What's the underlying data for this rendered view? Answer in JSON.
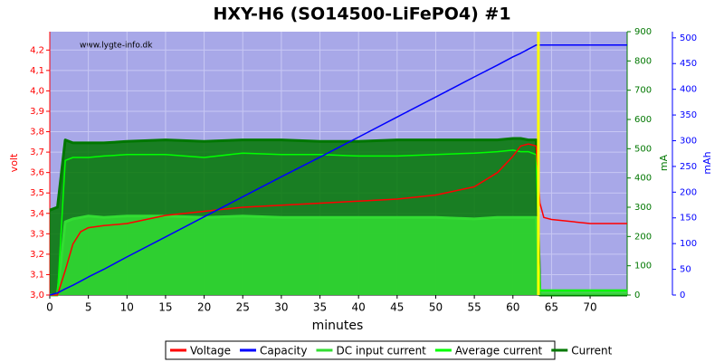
{
  "chart_data": {
    "type": "line",
    "title": "HXY-H6 (SO14500-LiFePO4) #1",
    "annotation": "www.lygte-info.dk",
    "xlabel": "minutes",
    "ylabel": "volt",
    "y2label": "mA",
    "y3label": "mAh",
    "x": [
      0,
      1,
      2,
      3,
      4,
      5,
      7,
      10,
      15,
      20,
      25,
      30,
      35,
      40,
      45,
      50,
      55,
      58,
      60,
      61,
      62,
      63,
      63.5,
      64,
      65,
      70,
      74.8
    ],
    "xlim": [
      0,
      74.8
    ],
    "xticks": [
      0,
      5,
      10,
      15,
      20,
      25,
      30,
      35,
      40,
      45,
      50,
      55,
      60,
      65,
      70
    ],
    "ylim": [
      3.0,
      4.29
    ],
    "yticks": [
      {
        "value": 3.0,
        "label": "3,0"
      },
      {
        "value": 3.1,
        "label": "3,1"
      },
      {
        "value": 3.2,
        "label": "3,2"
      },
      {
        "value": 3.3,
        "label": "3,3"
      },
      {
        "value": 3.4,
        "label": "3,4"
      },
      {
        "value": 3.5,
        "label": "3,5"
      },
      {
        "value": 3.6,
        "label": "3,6"
      },
      {
        "value": 3.7,
        "label": "3,7"
      },
      {
        "value": 3.8,
        "label": "3,8"
      },
      {
        "value": 3.9,
        "label": "3,9"
      },
      {
        "value": 4.0,
        "label": "4,0"
      },
      {
        "value": 4.1,
        "label": "4,1"
      },
      {
        "value": 4.2,
        "label": "4,2"
      }
    ],
    "y2lim": [
      0,
      900
    ],
    "y2ticks": [
      0,
      100,
      200,
      300,
      400,
      500,
      600,
      700,
      800,
      900
    ],
    "y3lim": [
      0,
      512
    ],
    "y3ticks": [
      0,
      50,
      100,
      150,
      200,
      250,
      300,
      350,
      400,
      450,
      500
    ],
    "grid": true,
    "highlight_x": 63.3,
    "highlight_color": "#ffff00",
    "series": [
      {
        "name": "Voltage",
        "color": "#ff0000",
        "axis": "y",
        "values": [
          3.0,
          3.0,
          3.12,
          3.25,
          3.31,
          3.33,
          3.34,
          3.35,
          3.39,
          3.41,
          3.43,
          3.44,
          3.45,
          3.46,
          3.47,
          3.49,
          3.53,
          3.6,
          3.68,
          3.73,
          3.74,
          3.73,
          3.45,
          3.38,
          3.37,
          3.35,
          3.35
        ]
      },
      {
        "name": "Capacity",
        "color": "#0000ff",
        "axis": "y3",
        "values": [
          0,
          4,
          12,
          19,
          27,
          35,
          50,
          74,
          113,
          152,
          191,
          230,
          268,
          307,
          346,
          385,
          424,
          447,
          463,
          470,
          478,
          486,
          486,
          486,
          486,
          486,
          486
        ]
      },
      {
        "name": "DC input current",
        "color": "#33dd33",
        "axis": "y2",
        "values": [
          0,
          0,
          250,
          260,
          265,
          270,
          265,
          270,
          270,
          265,
          270,
          265,
          265,
          265,
          265,
          265,
          260,
          265,
          265,
          265,
          265,
          265,
          15,
          15,
          15,
          15,
          15
        ]
      },
      {
        "name": "Average current",
        "color": "#00ff00",
        "axis": "y2",
        "values": [
          0,
          0,
          460,
          470,
          470,
          470,
          475,
          480,
          480,
          470,
          485,
          480,
          480,
          475,
          475,
          480,
          485,
          490,
          495,
          490,
          490,
          480,
          15,
          15,
          15,
          15,
          15
        ]
      },
      {
        "name": "Current",
        "color": "#007700",
        "axis": "y2",
        "values": [
          290,
          300,
          530,
          520,
          520,
          520,
          520,
          525,
          530,
          525,
          530,
          530,
          525,
          525,
          530,
          530,
          530,
          530,
          535,
          535,
          530,
          530,
          0,
          0,
          0,
          0,
          0
        ]
      }
    ]
  }
}
